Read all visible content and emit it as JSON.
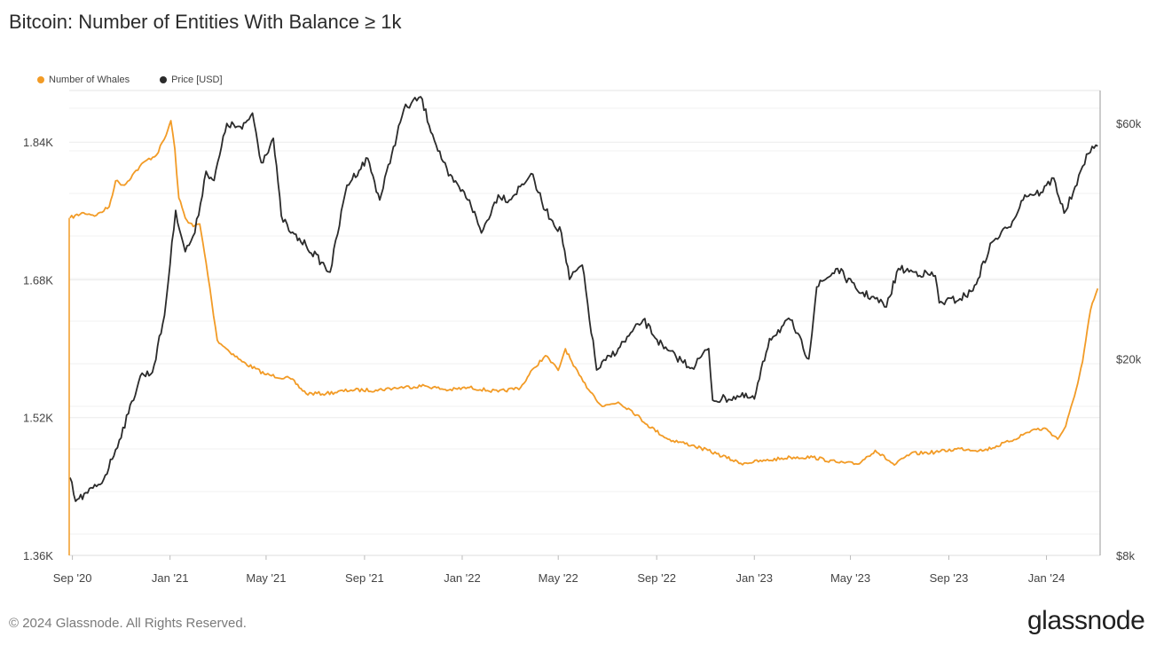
{
  "title": "Bitcoin: Number of Entities With Balance ≥ 1k",
  "legend": [
    {
      "name": "Number of Whales",
      "color": "#f29b26"
    },
    {
      "name": "Price [USD]",
      "color": "#2b2b2b"
    }
  ],
  "footer": "© 2024 Glassnode. All Rights Reserved.",
  "logo": "glassnode",
  "chart_data": {
    "type": "line",
    "y_left_ticks": [
      "1.84K",
      "1.68K",
      "1.52K",
      "1.36K"
    ],
    "y_left_range": [
      1360,
      1900
    ],
    "y_right_ticks": [
      "$60k",
      "$20k",
      "$8k"
    ],
    "y_right_scale": "log",
    "y_right_range": [
      8000,
      70000
    ],
    "x_ticks": [
      "Sep '20",
      "Jan '21",
      "May '21",
      "Sep '21",
      "Jan '22",
      "May '22",
      "Sep '22",
      "Jan '23",
      "May '23",
      "Sep '23",
      "Jan '24"
    ],
    "x_range": [
      "2020-08-28",
      "2024-03-08"
    ],
    "grid": true,
    "legend_position": "top-left",
    "series": [
      {
        "name": "Number of Whales",
        "axis": "left",
        "color": "#f29b26",
        "points": [
          [
            "2020-08-29",
            1752
          ],
          [
            "2020-09-15",
            1758
          ],
          [
            "2020-10-01",
            1755
          ],
          [
            "2020-10-17",
            1765
          ],
          [
            "2020-10-25",
            1795
          ],
          [
            "2020-11-05",
            1790
          ],
          [
            "2020-11-15",
            1802
          ],
          [
            "2020-12-01",
            1818
          ],
          [
            "2020-12-15",
            1825
          ],
          [
            "2020-12-27",
            1848
          ],
          [
            "2021-01-02",
            1865
          ],
          [
            "2021-01-07",
            1832
          ],
          [
            "2021-01-12",
            1775
          ],
          [
            "2021-01-20",
            1752
          ],
          [
            "2021-01-30",
            1742
          ],
          [
            "2021-02-07",
            1745
          ],
          [
            "2021-02-15",
            1700
          ],
          [
            "2021-02-22",
            1655
          ],
          [
            "2021-03-01",
            1610
          ],
          [
            "2021-03-10",
            1602
          ],
          [
            "2021-04-01",
            1585
          ],
          [
            "2021-05-01",
            1570
          ],
          [
            "2021-06-01",
            1565
          ],
          [
            "2021-06-20",
            1548
          ],
          [
            "2021-07-15",
            1548
          ],
          [
            "2021-08-15",
            1552
          ],
          [
            "2021-09-15",
            1552
          ],
          [
            "2021-10-15",
            1555
          ],
          [
            "2021-11-15",
            1557
          ],
          [
            "2021-12-15",
            1552
          ],
          [
            "2022-01-10",
            1555
          ],
          [
            "2022-02-15",
            1550
          ],
          [
            "2022-03-15",
            1555
          ],
          [
            "2022-04-01",
            1578
          ],
          [
            "2022-04-15",
            1592
          ],
          [
            "2022-05-01",
            1575
          ],
          [
            "2022-05-10",
            1600
          ],
          [
            "2022-05-20",
            1580
          ],
          [
            "2022-06-01",
            1562
          ],
          [
            "2022-06-15",
            1545
          ],
          [
            "2022-06-25",
            1533
          ],
          [
            "2022-07-15",
            1538
          ],
          [
            "2022-08-01",
            1528
          ],
          [
            "2022-08-20",
            1512
          ],
          [
            "2022-09-15",
            1495
          ],
          [
            "2022-10-15",
            1488
          ],
          [
            "2022-11-15",
            1478
          ],
          [
            "2022-12-15",
            1467
          ],
          [
            "2023-01-15",
            1470
          ],
          [
            "2023-02-15",
            1474
          ],
          [
            "2023-03-15",
            1474
          ],
          [
            "2023-04-15",
            1468
          ],
          [
            "2023-05-10",
            1466
          ],
          [
            "2023-06-01",
            1482
          ],
          [
            "2023-06-25",
            1465
          ],
          [
            "2023-07-15",
            1478
          ],
          [
            "2023-08-15",
            1480
          ],
          [
            "2023-09-15",
            1484
          ],
          [
            "2023-10-15",
            1482
          ],
          [
            "2023-11-15",
            1492
          ],
          [
            "2023-12-15",
            1506
          ],
          [
            "2024-01-01",
            1507
          ],
          [
            "2024-01-15",
            1495
          ],
          [
            "2024-01-25",
            1510
          ],
          [
            "2024-02-05",
            1545
          ],
          [
            "2024-02-15",
            1585
          ],
          [
            "2024-02-25",
            1645
          ],
          [
            "2024-03-05",
            1670
          ]
        ]
      },
      {
        "name": "Price [USD]",
        "axis": "right",
        "color": "#2b2b2b",
        "points": [
          [
            "2020-08-29",
            11500
          ],
          [
            "2020-09-05",
            10300
          ],
          [
            "2020-09-20",
            10700
          ],
          [
            "2020-10-10",
            11400
          ],
          [
            "2020-10-25",
            13100
          ],
          [
            "2020-11-10",
            15500
          ],
          [
            "2020-11-25",
            18500
          ],
          [
            "2020-12-10",
            18800
          ],
          [
            "2020-12-25",
            24500
          ],
          [
            "2021-01-08",
            40000
          ],
          [
            "2021-01-20",
            33000
          ],
          [
            "2021-02-01",
            36000
          ],
          [
            "2021-02-15",
            48000
          ],
          [
            "2021-02-25",
            46000
          ],
          [
            "2021-03-13",
            60000
          ],
          [
            "2021-04-01",
            58500
          ],
          [
            "2021-04-14",
            63000
          ],
          [
            "2021-04-25",
            50000
          ],
          [
            "2021-05-10",
            56000
          ],
          [
            "2021-05-20",
            39000
          ],
          [
            "2021-06-01",
            36000
          ],
          [
            "2021-06-20",
            34000
          ],
          [
            "2021-07-20",
            30000
          ],
          [
            "2021-08-10",
            45000
          ],
          [
            "2021-09-05",
            51000
          ],
          [
            "2021-09-20",
            42000
          ],
          [
            "2021-10-05",
            52000
          ],
          [
            "2021-10-20",
            64000
          ],
          [
            "2021-11-10",
            68000
          ],
          [
            "2021-11-25",
            57000
          ],
          [
            "2021-12-15",
            47000
          ],
          [
            "2022-01-10",
            42000
          ],
          [
            "2022-01-25",
            36000
          ],
          [
            "2022-02-15",
            43000
          ],
          [
            "2022-03-01",
            42000
          ],
          [
            "2022-03-28",
            47500
          ],
          [
            "2022-04-15",
            40000
          ],
          [
            "2022-05-05",
            36000
          ],
          [
            "2022-05-15",
            29000
          ],
          [
            "2022-05-31",
            31000
          ],
          [
            "2022-06-18",
            19000
          ],
          [
            "2022-07-15",
            21000
          ],
          [
            "2022-08-15",
            24000
          ],
          [
            "2022-09-10",
            21000
          ],
          [
            "2022-10-15",
            19200
          ],
          [
            "2022-11-05",
            21000
          ],
          [
            "2022-11-10",
            16500
          ],
          [
            "2022-12-15",
            16800
          ],
          [
            "2023-01-01",
            16600
          ],
          [
            "2023-01-20",
            22000
          ],
          [
            "2023-02-15",
            24000
          ],
          [
            "2023-03-10",
            20000
          ],
          [
            "2023-03-20",
            28000
          ],
          [
            "2023-04-15",
            30500
          ],
          [
            "2023-05-10",
            27500
          ],
          [
            "2023-06-01",
            26500
          ],
          [
            "2023-06-15",
            25500
          ],
          [
            "2023-06-30",
            30500
          ],
          [
            "2023-07-20",
            30000
          ],
          [
            "2023-08-15",
            29500
          ],
          [
            "2023-08-20",
            26000
          ],
          [
            "2023-09-15",
            26500
          ],
          [
            "2023-10-01",
            27500
          ],
          [
            "2023-10-25",
            34500
          ],
          [
            "2023-11-15",
            37000
          ],
          [
            "2023-12-05",
            43000
          ],
          [
            "2023-12-25",
            43500
          ],
          [
            "2024-01-10",
            46500
          ],
          [
            "2024-01-23",
            39500
          ],
          [
            "2024-02-08",
            45000
          ],
          [
            "2024-02-20",
            52000
          ],
          [
            "2024-03-05",
            54000
          ]
        ]
      }
    ]
  }
}
